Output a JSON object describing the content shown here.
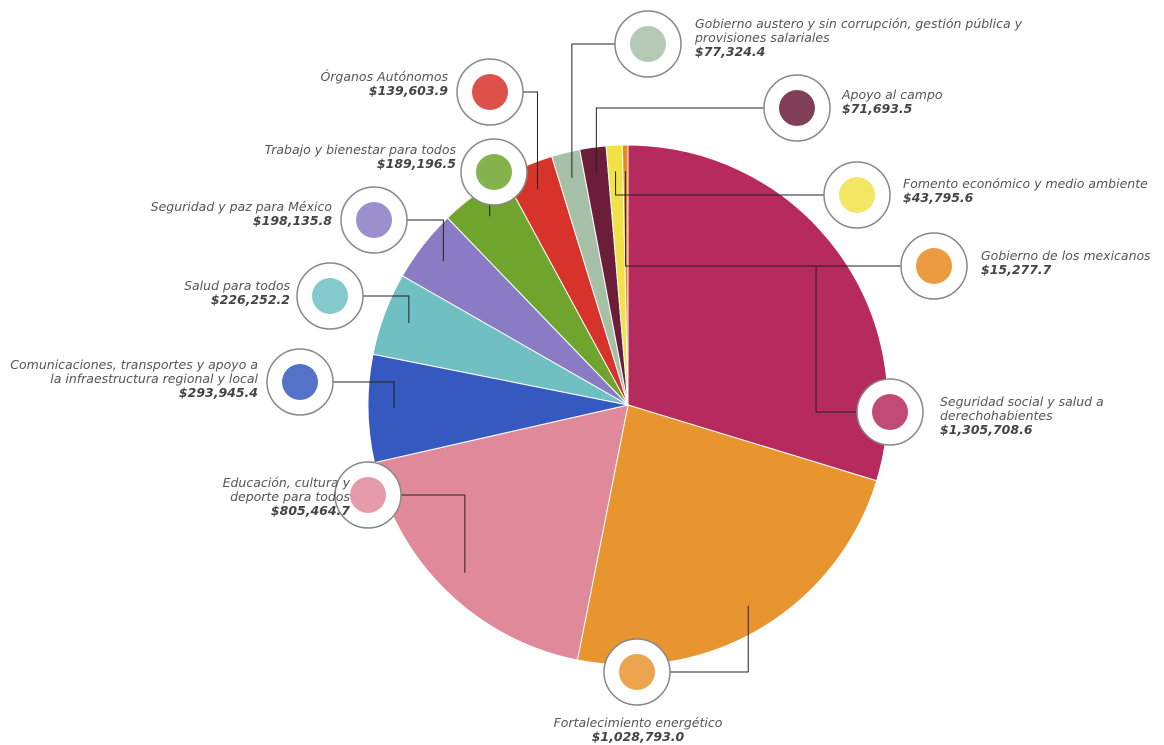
{
  "chart_data": {
    "type": "pie",
    "categories": [
      "Seguridad social y salud a derechohabientes",
      "Fortalecimiento energético",
      "Educación, cultura y deporte para todos",
      "Comunicaciones, transportes y apoyo a la infraestructura regional y local",
      "Salud para todos",
      "Seguridad y paz para México",
      "Trabajo y bienestar para todos",
      "Órganos Autónomos",
      "Gobierno austero y sin corrupción, gestión pública y provisiones salariales",
      "Apoyo al campo",
      "Fomento económico y medio ambiente",
      "Gobierno de los mexicanos"
    ],
    "values": [
      1305708.6,
      1028793.0,
      805464.7,
      293945.4,
      226252.2,
      198135.8,
      189196.5,
      139603.9,
      77324.4,
      71693.5,
      43795.6,
      15277.7
    ],
    "value_labels": [
      "$1,305,708.6",
      "$1,028,793.0",
      "$805,464.7",
      "$293,945.4",
      "$226,252.2",
      "$198,135.8",
      "$189,196.5",
      "$139,603.9",
      "$77,324.4",
      "$71,693.5",
      "$43,795.6",
      "$15,277.7"
    ],
    "colors": [
      "#b72a5e",
      "#e9952f",
      "#e0899a",
      "#3559be",
      "#6fbfc3",
      "#8a7cc4",
      "#6fa42d",
      "#d7332a",
      "#a6c0a7",
      "#6b1d3a",
      "#f2e24a",
      "#e98a1f"
    ]
  }
}
